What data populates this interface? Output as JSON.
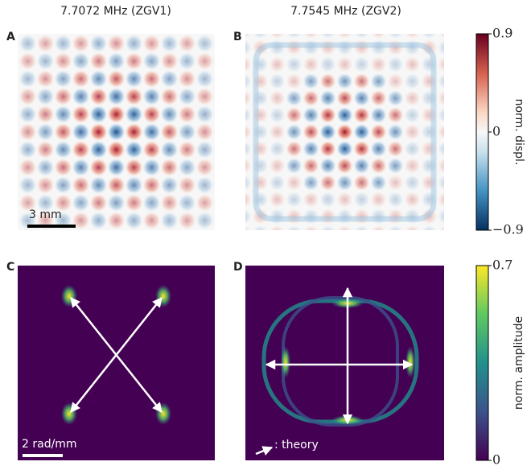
{
  "columns": [
    "7.7072 MHz (ZGV1)",
    "7.7545 MHz (ZGV2)"
  ],
  "panels": [
    "A",
    "B",
    "C",
    "D"
  ],
  "scale_bars": [
    "3 mm",
    "2 rad/mm"
  ],
  "legend": ": theory",
  "colorbars": [
    {
      "label": "norm. displ.",
      "lim": [
        -0.9,
        0.9
      ],
      "ticks": [
        0.9,
        0,
        {
          "value": -0.9,
          "label": "−0.9"
        }
      ]
    },
    {
      "label": "norm. amplitude",
      "lim": [
        0,
        0.7
      ],
      "ticks": [
        0.7,
        0
      ]
    }
  ]
}
